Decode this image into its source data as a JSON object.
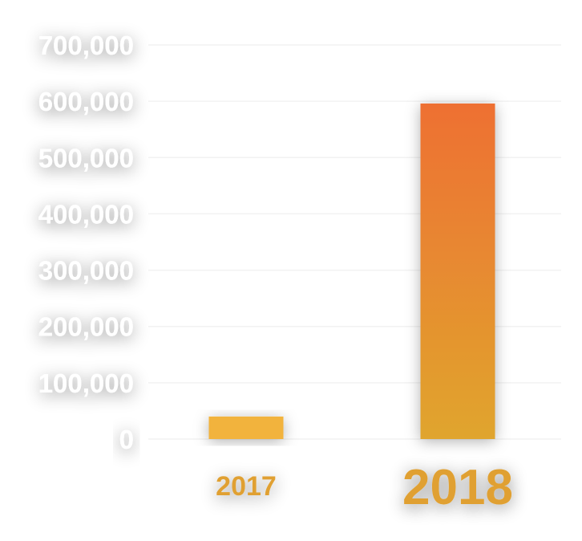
{
  "chart_data": {
    "type": "bar",
    "title": "",
    "xlabel": "",
    "ylabel": "",
    "categories": [
      "2017",
      "2018"
    ],
    "values": [
      40000,
      596000
    ],
    "ylim": [
      0,
      700000
    ],
    "yticks": [
      0,
      100000,
      200000,
      300000,
      400000,
      500000,
      600000,
      700000
    ],
    "ytick_labels": [
      "0",
      "100,000",
      "200,000",
      "300,000",
      "400,000",
      "500,000",
      "600,000",
      "700,000"
    ],
    "grid": true,
    "legend": "none",
    "colors": {
      "bar_2017": "#f2b33e",
      "bar_2018_top": "#ee7033",
      "bar_2018_bottom": "#e0a52d",
      "category_label": "#e0a030",
      "tick_label": "#ffffff"
    }
  }
}
